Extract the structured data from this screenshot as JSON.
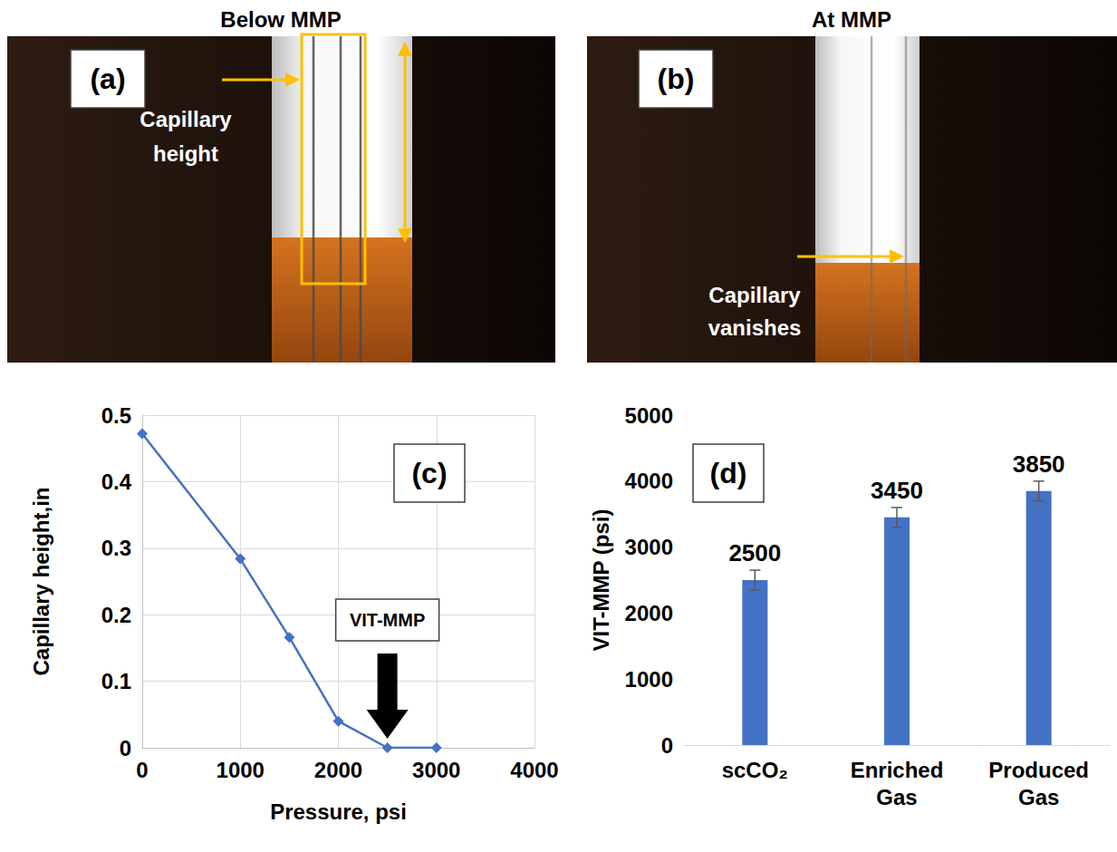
{
  "photos": [
    {
      "heading": "Below MMP",
      "panel_label": "(a)",
      "annotation": "Capillary height"
    },
    {
      "heading": "At MMP",
      "panel_label": "(b)",
      "annotation": "Capillary vanishes"
    }
  ],
  "chart_data": [
    {
      "panel_label": "(c)",
      "type": "line",
      "x_label": "Pressure, psi",
      "y_label": "Capillary height,in",
      "x": [
        0,
        1000,
        1500,
        2000,
        2500,
        3000
      ],
      "values": [
        0.472,
        0.284,
        0.166,
        0.04,
        0,
        0
      ],
      "color": "#4472c4",
      "marker": "diamond",
      "xlim": [
        0,
        4000
      ],
      "xticks": [
        0,
        1000,
        2000,
        3000,
        4000
      ],
      "ylim": [
        0,
        0.5
      ],
      "yticks": [
        0,
        0.1,
        0.2,
        0.3,
        0.4,
        0.5
      ],
      "grid": true,
      "annotations": [
        {
          "text": "VIT-MMP",
          "x": 2500,
          "y": 0
        }
      ]
    },
    {
      "panel_label": "(d)",
      "type": "bar",
      "y_label": "VIT-MMP (psi)",
      "categories": [
        "scCO₂",
        "Enriched Gas",
        "Produced Gas"
      ],
      "values": [
        2500,
        3450,
        3850
      ],
      "errors": [
        150,
        150,
        150
      ],
      "color": "#4472c4",
      "ylim": [
        0,
        5000
      ],
      "yticks": [
        0,
        1000,
        2000,
        3000,
        4000,
        5000
      ],
      "grid": false,
      "data_labels": true
    }
  ]
}
